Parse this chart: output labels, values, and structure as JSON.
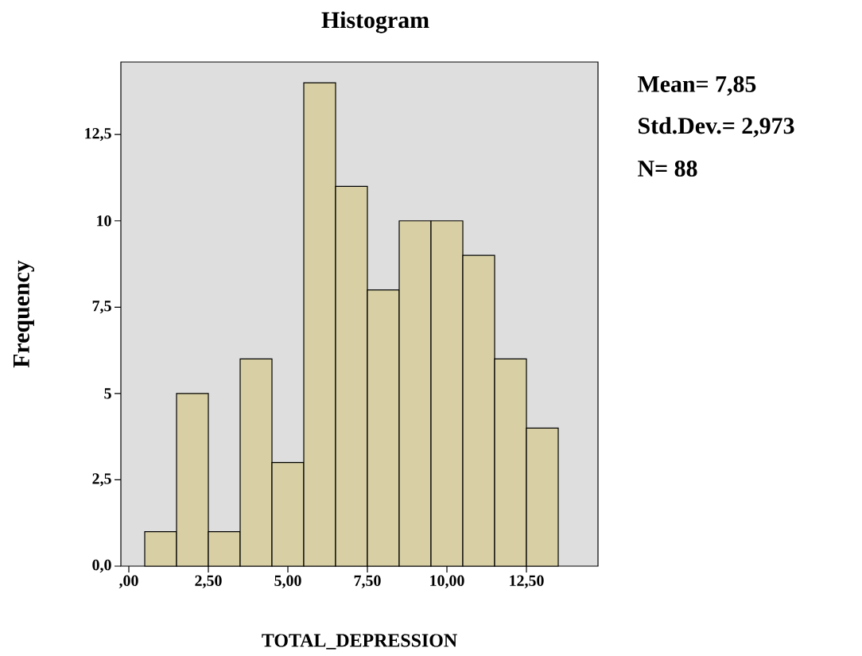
{
  "chart_data": {
    "type": "histogram",
    "title": "Histogram",
    "xlabel": "TOTAL_DEPRESSION",
    "ylabel": "Frequency",
    "annotations": [
      "Mean= 7,85",
      "Std.Dev.= 2,973",
      "N= 88"
    ],
    "bins": [
      0.5,
      1.5,
      2.5,
      3.5,
      4.5,
      5.5,
      6.5,
      7.5,
      8.5,
      9.5,
      10.5,
      11.5,
      12.5,
      13.5
    ],
    "values": [
      1,
      5,
      1,
      6,
      3,
      14,
      11,
      8,
      10,
      10,
      9,
      6,
      4
    ],
    "color": "#d8d0a4",
    "xlim": [
      -0.25,
      14.75
    ],
    "ylim": [
      0,
      14.6
    ],
    "xticks": [
      {
        "value": 0,
        "label": ",00"
      },
      {
        "value": 2.5,
        "label": "2,50"
      },
      {
        "value": 5,
        "label": "5,00"
      },
      {
        "value": 7.5,
        "label": "7,50"
      },
      {
        "value": 10,
        "label": "10,00"
      },
      {
        "value": 12.5,
        "label": "12,50"
      }
    ],
    "yticks": [
      {
        "value": 0,
        "label": "0,0"
      },
      {
        "value": 2.5,
        "label": "2,5"
      },
      {
        "value": 5,
        "label": "5"
      },
      {
        "value": 7.5,
        "label": "7,5"
      },
      {
        "value": 10,
        "label": "10"
      },
      {
        "value": 12.5,
        "label": "12,5"
      }
    ]
  }
}
